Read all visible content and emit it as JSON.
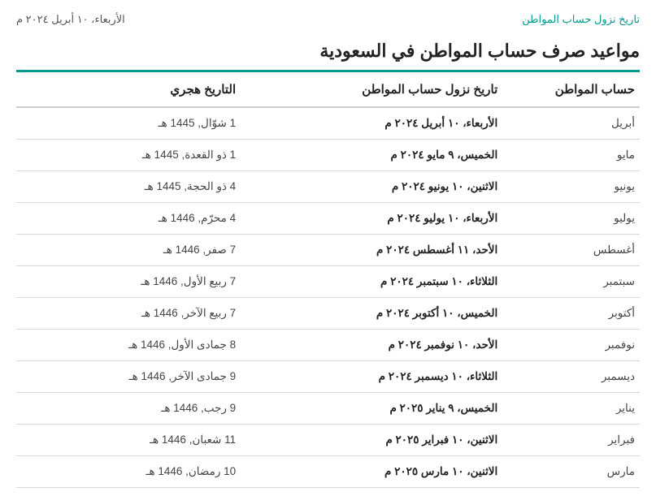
{
  "header": {
    "breadcrumb": "تاريخ نزول حساب المواطن",
    "today": "الأربعاء، ١٠ أبريل ٢٠٢٤ م",
    "title": "مواعيد صرف حساب المواطن في السعودية"
  },
  "table": {
    "columns": {
      "month": "حساب المواطن",
      "gregorian": "تاريخ نزول حساب المواطن",
      "hijri": "التاريخ هجري"
    },
    "rows": [
      {
        "month": "أبريل",
        "gregorian": "الأربعاء، ١٠ أبريل ٢٠٢٤ م",
        "hijri": "1 شوّال, 1445 هـ"
      },
      {
        "month": "مايو",
        "gregorian": "الخميس، ٩ مايو ٢٠٢٤ م",
        "hijri": "1 ذو القعدة, 1445 هـ"
      },
      {
        "month": "يونيو",
        "gregorian": "الاثنين، ١٠ يونيو ٢٠٢٤ م",
        "hijri": "4 ذو الحجة, 1445 هـ"
      },
      {
        "month": "يوليو",
        "gregorian": "الأربعاء، ١٠ يوليو ٢٠٢٤ م",
        "hijri": "4 محرّم, 1446 هـ"
      },
      {
        "month": "أغسطس",
        "gregorian": "الأحد، ١١ أغسطس ٢٠٢٤ م",
        "hijri": "7 صفر, 1446 هـ"
      },
      {
        "month": "سبتمبر",
        "gregorian": "الثلاثاء، ١٠ سبتمبر ٢٠٢٤ م",
        "hijri": "7 ربيع الأول, 1446 هـ"
      },
      {
        "month": "أكتوبر",
        "gregorian": "الخميس، ١٠ أكتوبر ٢٠٢٤ م",
        "hijri": "7 ربيع الآخر, 1446 هـ"
      },
      {
        "month": "نوفمبر",
        "gregorian": "الأحد، ١٠ نوفمبر ٢٠٢٤ م",
        "hijri": "8 جمادى الأول, 1446 هـ"
      },
      {
        "month": "ديسمبر",
        "gregorian": "الثلاثاء، ١٠ ديسمبر ٢٠٢٤ م",
        "hijri": "9 جمادى الآخر, 1446 هـ"
      },
      {
        "month": "يناير",
        "gregorian": "الخميس، ٩ يناير ٢٠٢٥ م",
        "hijri": "9 رجب, 1446 هـ"
      },
      {
        "month": "فبراير",
        "gregorian": "الاثنين، ١٠ فبراير ٢٠٢٥ م",
        "hijri": "11 شعبان, 1446 هـ"
      },
      {
        "month": "مارس",
        "gregorian": "الاثنين، ١٠ مارس ٢٠٢٥ م",
        "hijri": "10 رمضان, 1446 هـ"
      }
    ]
  },
  "style": {
    "accent_color": "#009a8e",
    "border_color": "#d8d8d8",
    "header_border": "#cccccc",
    "text_color": "#333333",
    "bold_text": "#222222",
    "font_family": "Tahoma, Arial, sans-serif"
  }
}
